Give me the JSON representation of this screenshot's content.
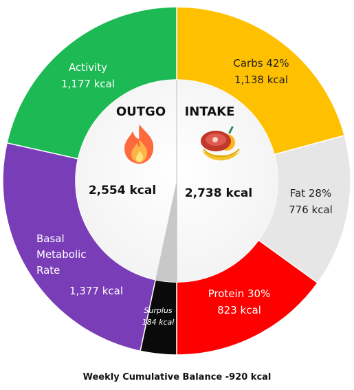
{
  "chart_data": {
    "type": "pie",
    "caption": "Weekly Cumulative Balance -920 kcal",
    "outgo": {
      "title": "OUTGO",
      "total_label": "2,554 kcal",
      "icon": "fire-icon",
      "slices": [
        {
          "id": "activity",
          "name": "Activity",
          "value_label": "1,177 kcal",
          "value": 1177,
          "color": "#1db954"
        },
        {
          "id": "bmr",
          "name_lines": [
            "Basal",
            "Metabolic",
            "Rate"
          ],
          "value_label": "1,377 kcal",
          "value": 1377,
          "color": "#7a3db8"
        },
        {
          "id": "surplus",
          "name": "Surplus",
          "value_label": "184 kcal",
          "value": 184,
          "color": "#0a0a0a"
        }
      ]
    },
    "intake": {
      "title": "INTAKE",
      "total_label": "2,738 kcal",
      "icon": "food-icon",
      "slices": [
        {
          "id": "carbs",
          "name": "Carbs 42%",
          "value_label": "1,138 kcal",
          "value": 1138,
          "percent": 42,
          "color": "#ffc000"
        },
        {
          "id": "fat",
          "name": "Fat 28%",
          "value_label": "776 kcal",
          "value": 776,
          "percent": 28,
          "color": "#e6e6e6"
        },
        {
          "id": "protein",
          "name": "Protein 30%",
          "value_label": "823 kcal",
          "value": 823,
          "percent": 30,
          "color": "#ff0000"
        }
      ]
    }
  }
}
